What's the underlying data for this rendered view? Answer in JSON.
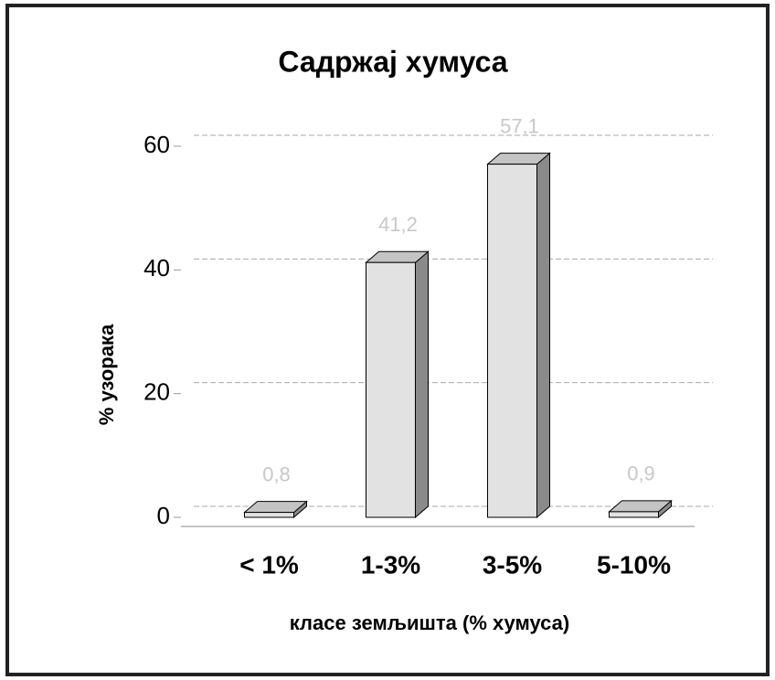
{
  "chart_data": {
    "type": "bar3d",
    "title": "Садржај хумуса",
    "categories": [
      "< 1%",
      "1-3%",
      "3-5%",
      "5-10%"
    ],
    "values": [
      0.8,
      41.2,
      57.1,
      0.9
    ],
    "value_labels": [
      "0,8",
      "41,2",
      "57,1",
      "0,9"
    ],
    "color": "#e2e2e2",
    "ylim": [
      0,
      60
    ],
    "yticks": [
      0,
      20,
      40,
      60
    ],
    "grid": true,
    "y_label": "% узорака",
    "x_label": "класе земљишта (% хумуса)"
  }
}
